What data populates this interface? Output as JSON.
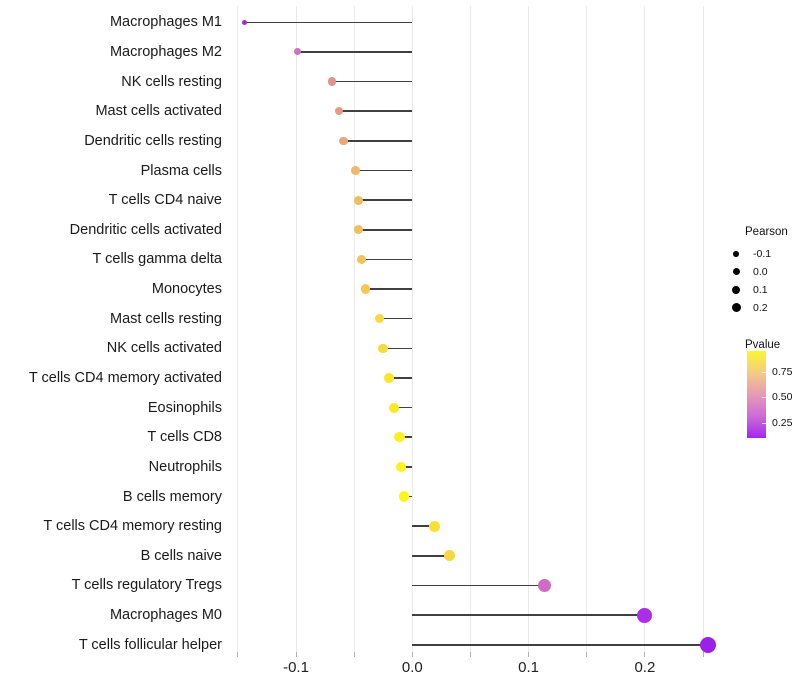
{
  "chart_data": {
    "type": "lollipop",
    "orientation": "horizontal",
    "title": "",
    "xlabel": "",
    "ylabel": "",
    "xlim": [
      -0.165,
      0.275
    ],
    "grid": true,
    "grid_values": [
      -0.15,
      -0.1,
      -0.05,
      0.0,
      0.05,
      0.1,
      0.15,
      0.2,
      0.25
    ],
    "x_ticks": [
      -0.1,
      0.0,
      0.1,
      0.2
    ],
    "x_tick_labels": [
      "-0.1",
      "0.0",
      "0.1",
      "0.2"
    ],
    "points": [
      {
        "label": "Macrophages M1",
        "pearson": -0.144,
        "color": "#9B30D6"
      },
      {
        "label": "Macrophages M2",
        "pearson": -0.099,
        "color": "#D06FC0"
      },
      {
        "label": "NK cells resting",
        "pearson": -0.069,
        "color": "#E2938D"
      },
      {
        "label": "Mast cells activated",
        "pearson": -0.063,
        "color": "#E69A84"
      },
      {
        "label": "Dendritic cells resting",
        "pearson": -0.059,
        "color": "#EAA87A"
      },
      {
        "label": "Plasma cells",
        "pearson": -0.049,
        "color": "#EFB968"
      },
      {
        "label": "T cells CD4 naive",
        "pearson": -0.046,
        "color": "#F0BC63"
      },
      {
        "label": "Dendritic cells activated",
        "pearson": -0.046,
        "color": "#F0BE60"
      },
      {
        "label": "T cells gamma delta",
        "pearson": -0.044,
        "color": "#F2C35B"
      },
      {
        "label": "Monocytes",
        "pearson": -0.04,
        "color": "#F3C953"
      },
      {
        "label": "Mast cells resting",
        "pearson": -0.028,
        "color": "#F6D940"
      },
      {
        "label": "NK cells activated",
        "pearson": -0.025,
        "color": "#F7DB3C"
      },
      {
        "label": "T cells CD4 memory activated",
        "pearson": -0.02,
        "color": "#F9E52D"
      },
      {
        "label": "Eosinophils",
        "pearson": -0.016,
        "color": "#FAE827"
      },
      {
        "label": "T cells CD8",
        "pearson": -0.011,
        "color": "#FBEF22"
      },
      {
        "label": "Neutrophils",
        "pearson": -0.01,
        "color": "#FCF21E"
      },
      {
        "label": "B cells memory",
        "pearson": -0.007,
        "color": "#FDF51A"
      },
      {
        "label": "T cells CD4 memory resting",
        "pearson": 0.019,
        "color": "#F8E134"
      },
      {
        "label": "B cells naive",
        "pearson": 0.032,
        "color": "#F5D743"
      },
      {
        "label": "T cells regulatory Tregs",
        "pearson": 0.114,
        "color": "#CF6BC5"
      },
      {
        "label": "Macrophages M0",
        "pearson": 0.2,
        "color": "#AC2EE8"
      },
      {
        "label": "T cells follicular helper",
        "pearson": 0.254,
        "color": "#9C20E8"
      }
    ],
    "legend_size": {
      "title": "Pearson",
      "entries": [
        "-0.1",
        "0.0",
        "0.1",
        "0.2"
      ]
    },
    "legend_color": {
      "title": "Pvalue",
      "ticks": [
        "0.75",
        "0.50",
        "0.25"
      ],
      "gradient": [
        "#FBF62B",
        "#F3CC85",
        "#E69BB5",
        "#CC6CD8",
        "#A426F2"
      ]
    },
    "style": {
      "stem_color": "#404040",
      "grid_color": "#ebebeb",
      "axis_text_color": "#1a1a1a",
      "background": "#ffffff"
    }
  }
}
